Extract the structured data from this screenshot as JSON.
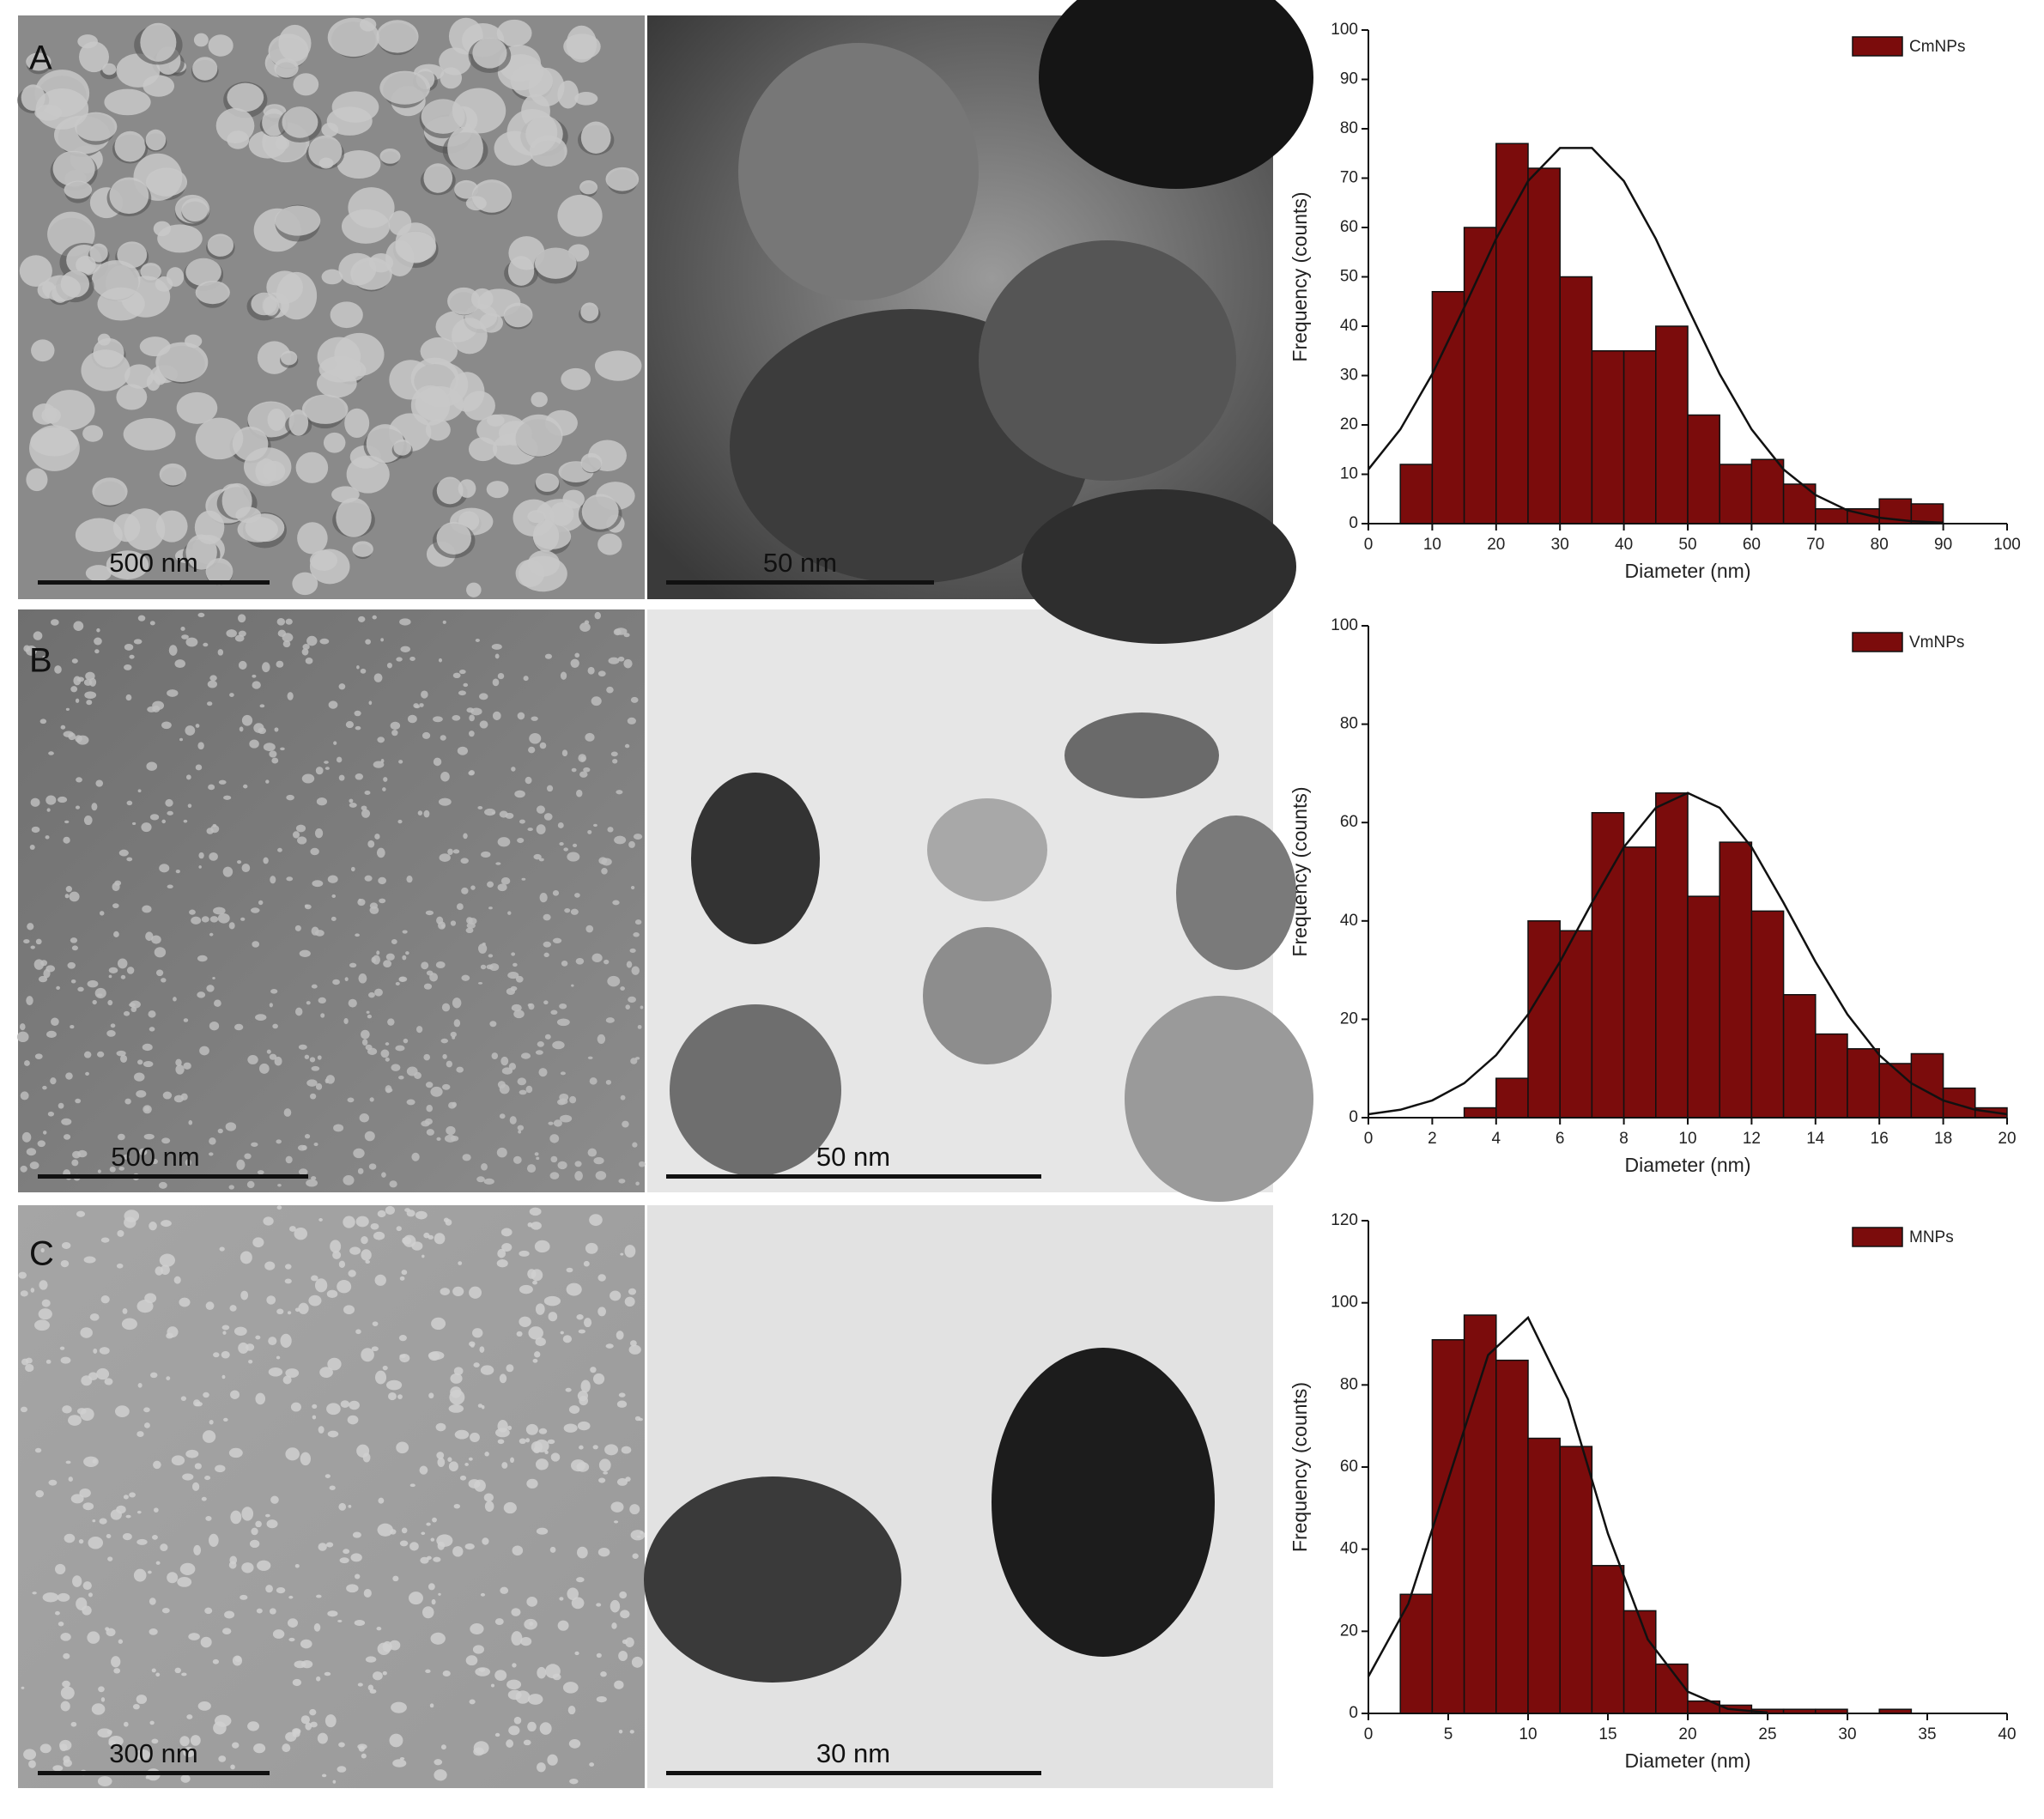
{
  "panels": [
    {
      "label": "A",
      "sem_scale": "500 nm",
      "tem_scale": "50 nm"
    },
    {
      "label": "B",
      "sem_scale": "500 nm",
      "tem_scale": "50 nm"
    },
    {
      "label": "C",
      "sem_scale": "300 nm",
      "tem_scale": "30 nm"
    }
  ],
  "chart_data": [
    {
      "type": "histogram",
      "name": "CmNPs",
      "color": "#7b0c0c",
      "xlabel": "Diameter (nm)",
      "ylabel": "Frequency (counts)",
      "bins": [
        5,
        10,
        15,
        20,
        25,
        30,
        35,
        40,
        45,
        50,
        55,
        60,
        65,
        70,
        75,
        80,
        85,
        90
      ],
      "counts": [
        12,
        47,
        60,
        77,
        72,
        50,
        35,
        35,
        40,
        22,
        12,
        13,
        8,
        3,
        3,
        5,
        4
      ],
      "fit": {
        "x": [
          0,
          5,
          10,
          15,
          20,
          25,
          30,
          35,
          40,
          45,
          50,
          55,
          60,
          65,
          70,
          75,
          80,
          85,
          90
        ],
        "values": [
          11.0,
          19.1,
          30.3,
          43.8,
          57.7,
          69.4,
          76.1,
          76.1,
          69.4,
          57.7,
          43.8,
          30.3,
          19.1,
          11.0,
          5.8,
          2.7,
          1.2,
          0.5,
          0.2
        ]
      },
      "xlim": [
        0,
        100
      ],
      "xticks": [
        0,
        10,
        20,
        30,
        40,
        50,
        60,
        70,
        80,
        90,
        100
      ],
      "ylim": [
        0,
        100
      ],
      "yticks": [
        0,
        10,
        20,
        30,
        40,
        50,
        60,
        70,
        80,
        90,
        100
      ]
    },
    {
      "type": "histogram",
      "name": "VmNPs",
      "color": "#7b0c0c",
      "xlabel": "Diameter (nm)",
      "ylabel": "Frequency (counts)",
      "bins": [
        3,
        4,
        5,
        6,
        7,
        8,
        9,
        10,
        11,
        12,
        13,
        14,
        15,
        16,
        17,
        18,
        19,
        20
      ],
      "counts": [
        2,
        8,
        40,
        38,
        62,
        55,
        66,
        45,
        56,
        42,
        25,
        17,
        14,
        11,
        13,
        6,
        2
      ],
      "fit": {
        "x": [
          0,
          1,
          2,
          3,
          4,
          5,
          6,
          7,
          8,
          9,
          10,
          11,
          12,
          13,
          14,
          15,
          16,
          17,
          18,
          19,
          20
        ],
        "values": [
          0.7,
          1.6,
          3.5,
          7.0,
          12.7,
          21.0,
          31.7,
          43.7,
          55.0,
          63.0,
          66,
          63.0,
          55.0,
          43.7,
          31.7,
          21.0,
          12.7,
          7.0,
          3.5,
          1.6,
          0.7
        ]
      },
      "xlim": [
        0,
        20
      ],
      "xticks": [
        0,
        2,
        4,
        6,
        8,
        10,
        12,
        14,
        16,
        18,
        20
      ],
      "ylim": [
        0,
        100
      ],
      "yticks": [
        0,
        20,
        40,
        60,
        80,
        100
      ]
    },
    {
      "type": "histogram",
      "name": "MNPs",
      "color": "#7b0c0c",
      "xlabel": "Diameter (nm)",
      "ylabel": "Frequency (counts)",
      "bins": [
        2,
        4,
        6,
        8,
        10,
        12,
        14,
        16,
        18,
        20,
        22,
        24,
        26,
        28,
        30,
        32,
        34
      ],
      "counts": [
        29,
        91,
        97,
        86,
        67,
        65,
        36,
        25,
        12,
        3,
        2,
        1,
        1,
        1,
        0,
        1
      ],
      "fit": {
        "x": [
          0,
          2.5,
          5,
          7.5,
          10,
          12.5,
          15,
          17.5,
          20,
          22.5,
          25
        ],
        "values": [
          9.0,
          26.7,
          56.9,
          87.3,
          96.4,
          76.5,
          43.8,
          18.0,
          5.3,
          1.1,
          0.2
        ]
      },
      "xlim": [
        0,
        40
      ],
      "xticks": [
        0,
        5,
        10,
        15,
        20,
        25,
        30,
        35,
        40
      ],
      "ylim": [
        0,
        120
      ],
      "yticks": [
        0,
        20,
        40,
        60,
        80,
        100,
        120
      ]
    }
  ]
}
